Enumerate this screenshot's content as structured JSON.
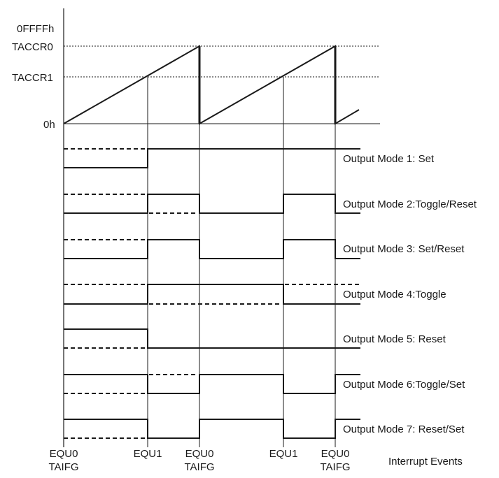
{
  "y_axis_labels": {
    "max": "0FFFFh",
    "ccr0": "TACCR0",
    "ccr1": "TACCR1",
    "zero": "0h"
  },
  "output_modes": [
    {
      "label": "Output Mode 1: Set"
    },
    {
      "label": "Output Mode 2:Toggle/Reset"
    },
    {
      "label": "Output Mode 3: Set/Reset"
    },
    {
      "label": "Output Mode 4:Toggle"
    },
    {
      "label": "Output Mode 5: Reset"
    },
    {
      "label": "Output Mode 6:Toggle/Set"
    },
    {
      "label": "Output Mode 7: Reset/Set"
    }
  ],
  "events": [
    {
      "line1": "EQU0",
      "line2": "TAIFG"
    },
    {
      "line1": "EQU1",
      "line2": ""
    },
    {
      "line1": "EQU0",
      "line2": "TAIFG"
    },
    {
      "line1": "EQU1",
      "line2": ""
    },
    {
      "line1": "EQU0",
      "line2": "TAIFG"
    }
  ],
  "events_caption": "Interrupt Events"
}
